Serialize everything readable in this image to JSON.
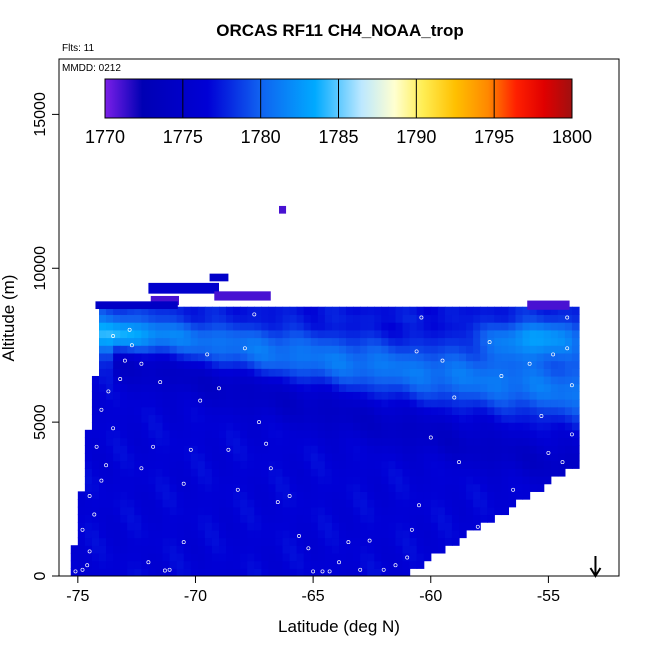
{
  "chart_data": {
    "type": "heatmap",
    "title": "ORCAS RF11 CH4_NOAA_trop",
    "subtitle_flights": "Flts: 11",
    "subtitle_date": "MMDD: 0212",
    "xlabel": "Latitude (deg N)",
    "ylabel": "Altitude (m)",
    "xlim": [
      -75.8,
      -52.0
    ],
    "ylim": [
      0,
      16800
    ],
    "x_ticks": [
      -75,
      -70,
      -65,
      -60,
      -55
    ],
    "x_tick_labels": [
      "-75",
      "-70",
      "-65",
      "-60",
      "-55"
    ],
    "y_ticks": [
      0,
      5000,
      10000,
      15000
    ],
    "y_tick_labels": [
      "0",
      "5000",
      "10000",
      "15000"
    ],
    "colorbar": {
      "min": 1770,
      "max": 1800,
      "ticks": [
        1770,
        1775,
        1780,
        1785,
        1790,
        1795,
        1800
      ],
      "tick_labels": [
        "1770",
        "1775",
        "1780",
        "1785",
        "1790",
        "1795",
        "1800"
      ],
      "colors": [
        "#7b1fe8",
        "#0000b4",
        "#0000d6",
        "#1060f0",
        "#00aaff",
        "#bde8ff",
        "#ffffd0",
        "#ffee55",
        "#ffc000",
        "#ff8800",
        "#ff2000",
        "#e00000",
        "#a01010"
      ],
      "color_stops": [
        0,
        0.08,
        0.22,
        0.33,
        0.45,
        0.55,
        0.62,
        0.68,
        0.75,
        0.82,
        0.88,
        0.94,
        1.0
      ]
    },
    "marker": {
      "type": "down-arrow",
      "latitude": -53.0
    },
    "region_bottom_edge": [
      [
        -75.3,
        0
      ],
      [
        -61.2,
        0
      ],
      [
        -53.8,
        3600
      ]
    ],
    "region_top_left_edge": [
      [
        -75.3,
        0
      ],
      [
        -74.5,
        5000
      ],
      [
        -74.0,
        8000
      ]
    ],
    "region_top": 8700,
    "field_features": [
      {
        "kind": "band",
        "lat_start": -74.0,
        "alt_start": 8000,
        "lat_end": -54.0,
        "alt_end": 6000,
        "value": 1781,
        "thickness": 900
      },
      {
        "kind": "band",
        "lat_start": -72.5,
        "alt_start": 6800,
        "lat_end": -54.0,
        "alt_end": 3500,
        "value": 1774.5,
        "thickness": 700
      },
      {
        "kind": "blob",
        "lat": -73.5,
        "alt": 7900,
        "value": 1784,
        "radius_lat": 2.2,
        "radius_alt": 500
      },
      {
        "kind": "blob",
        "lat": -55.5,
        "alt": 7700,
        "value": 1783,
        "radius_lat": 2.5,
        "radius_alt": 800
      },
      {
        "kind": "blob",
        "lat": -63.5,
        "alt": 8450,
        "value": 1777.5,
        "radius_lat": 9,
        "radius_alt": 300
      }
    ],
    "field_base_value": 1776.5,
    "isolated_cells": [
      {
        "lat": -69.0,
        "alt": 9700,
        "lat_width": 0.8,
        "alt_height": 250,
        "value": 1775
      },
      {
        "lat": -70.5,
        "alt": 9350,
        "lat_width": 3.0,
        "alt_height": 350,
        "value": 1775.5
      },
      {
        "lat": -68.0,
        "alt": 9100,
        "lat_width": 2.4,
        "alt_height": 300,
        "value": 1771
      },
      {
        "lat": -71.3,
        "alt": 8950,
        "lat_width": 1.2,
        "alt_height": 300,
        "value": 1771
      },
      {
        "lat": -72.5,
        "alt": 8800,
        "lat_width": 3.5,
        "alt_height": 250,
        "value": 1774.5
      },
      {
        "lat": -55.0,
        "alt": 8800,
        "lat_width": 1.8,
        "alt_height": 300,
        "value": 1771
      },
      {
        "lat": -66.3,
        "alt": 11900,
        "lat_width": 0.3,
        "alt_height": 250,
        "value": 1771
      }
    ],
    "sample_points": [
      [
        -75.1,
        150
      ],
      [
        -74.8,
        200
      ],
      [
        -74.6,
        350
      ],
      [
        -74.5,
        800
      ],
      [
        -74.8,
        1500
      ],
      [
        -74.3,
        2000
      ],
      [
        -74.5,
        2600
      ],
      [
        -74.0,
        3100
      ],
      [
        -73.8,
        3600
      ],
      [
        -74.2,
        4200
      ],
      [
        -73.5,
        4800
      ],
      [
        -74.0,
        5400
      ],
      [
        -73.7,
        6000
      ],
      [
        -73.2,
        6400
      ],
      [
        -73.0,
        7000
      ],
      [
        -72.7,
        7500
      ],
      [
        -73.5,
        7800
      ],
      [
        -72.8,
        8000
      ],
      [
        -72.3,
        6900
      ],
      [
        -71.5,
        6300
      ],
      [
        -71.8,
        4200
      ],
      [
        -72.3,
        3500
      ],
      [
        -72.0,
        450
      ],
      [
        -71.3,
        180
      ],
      [
        -71.1,
        200
      ],
      [
        -70.5,
        1100
      ],
      [
        -70.5,
        3000
      ],
      [
        -70.2,
        4100
      ],
      [
        -69.8,
        5700
      ],
      [
        -69.5,
        7200
      ],
      [
        -69.0,
        6100
      ],
      [
        -68.6,
        4100
      ],
      [
        -68.2,
        2800
      ],
      [
        -67.9,
        7400
      ],
      [
        -67.5,
        8500
      ],
      [
        -67.3,
        5000
      ],
      [
        -67.0,
        4300
      ],
      [
        -66.8,
        3500
      ],
      [
        -66.5,
        2400
      ],
      [
        -66.0,
        2600
      ],
      [
        -65.6,
        1300
      ],
      [
        -65.2,
        900
      ],
      [
        -65.0,
        150
      ],
      [
        -64.6,
        150
      ],
      [
        -64.3,
        150
      ],
      [
        -63.9,
        450
      ],
      [
        -63.5,
        1100
      ],
      [
        -63.0,
        200
      ],
      [
        -62.6,
        1150
      ],
      [
        -62.0,
        200
      ],
      [
        -61.5,
        350
      ],
      [
        -61.0,
        600
      ],
      [
        -60.8,
        1500
      ],
      [
        -60.5,
        2300
      ],
      [
        -60.0,
        4500
      ],
      [
        -60.6,
        7300
      ],
      [
        -60.4,
        8400
      ],
      [
        -59.5,
        7000
      ],
      [
        -59.0,
        5800
      ],
      [
        -58.8,
        3700
      ],
      [
        -58.0,
        1600
      ],
      [
        -57.5,
        7600
      ],
      [
        -57.0,
        6500
      ],
      [
        -56.5,
        2800
      ],
      [
        -55.8,
        6900
      ],
      [
        -55.3,
        5200
      ],
      [
        -55.0,
        4000
      ],
      [
        -54.8,
        7200
      ],
      [
        -54.4,
        3700
      ],
      [
        -54.0,
        4600
      ],
      [
        -54.2,
        8400
      ],
      [
        -54.2,
        7400
      ],
      [
        -54.0,
        6200
      ]
    ]
  }
}
